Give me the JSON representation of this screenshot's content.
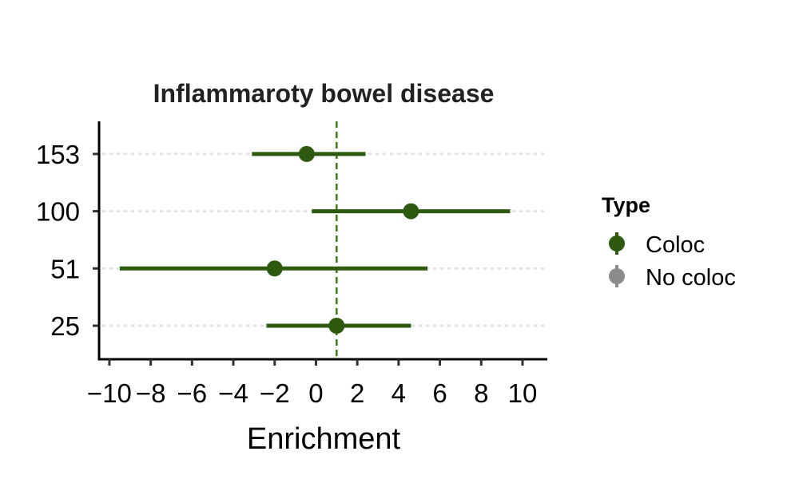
{
  "chart_data": {
    "type": "scatter",
    "subtype": "forest-plot",
    "title": "Inflammaroty bowel disease",
    "xlabel": "Enrichment",
    "ylabel": "",
    "xlim": [
      -10.5,
      11.2
    ],
    "xticks": [
      -10,
      -8,
      -6,
      -4,
      -2,
      0,
      2,
      4,
      6,
      8,
      10
    ],
    "xtick_labels": [
      "−10",
      "−8",
      "−6",
      "−4",
      "−2",
      "0",
      "2",
      "4",
      "6",
      "8",
      "10"
    ],
    "categories": [
      "25",
      "51",
      "100",
      "153"
    ],
    "reference_line": 1.0,
    "grid": "horizontal dotted",
    "series": [
      {
        "name": "Coloc",
        "color": "#2d5a0e",
        "points": [
          {
            "category": "153",
            "estimate": -0.45,
            "lower": -3.1,
            "upper": 2.4
          },
          {
            "category": "100",
            "estimate": 4.6,
            "lower": -0.2,
            "upper": 9.4
          },
          {
            "category": "51",
            "estimate": -2.0,
            "lower": -9.5,
            "upper": 5.4
          },
          {
            "category": "25",
            "estimate": 1.0,
            "lower": -2.4,
            "upper": 4.6
          }
        ]
      },
      {
        "name": "No coloc",
        "color": "#8c8c8c",
        "points": []
      }
    ],
    "legend": {
      "title": "Type",
      "position": "right",
      "entries": [
        "Coloc",
        "No coloc"
      ]
    }
  }
}
